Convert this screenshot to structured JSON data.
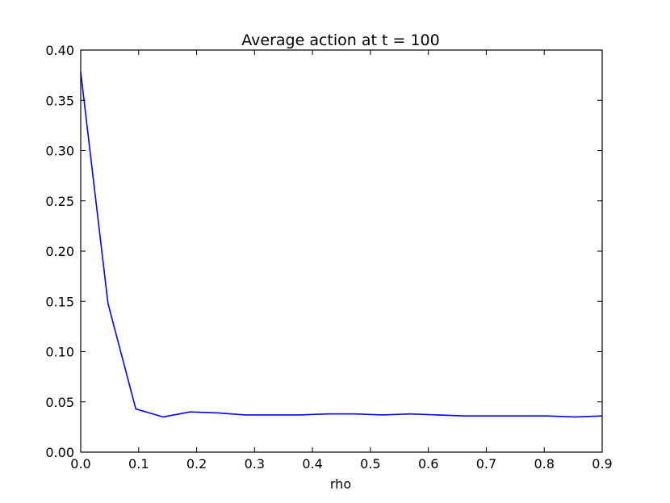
{
  "chart_data": {
    "type": "line",
    "title": "Average action at t = 100",
    "xlabel": "rho",
    "ylabel": "",
    "xlim": [
      0.0,
      0.9
    ],
    "ylim": [
      0.0,
      0.4
    ],
    "xticks": [
      "0.0",
      "0.1",
      "0.2",
      "0.3",
      "0.4",
      "0.5",
      "0.6",
      "0.7",
      "0.8",
      "0.9"
    ],
    "yticks": [
      "0.00",
      "0.05",
      "0.10",
      "0.15",
      "0.20",
      "0.25",
      "0.30",
      "0.35",
      "0.40"
    ],
    "grid": false,
    "series": [
      {
        "color": "#0000ff",
        "x": [
          0.0,
          0.047,
          0.095,
          0.142,
          0.189,
          0.237,
          0.284,
          0.332,
          0.379,
          0.426,
          0.474,
          0.521,
          0.568,
          0.616,
          0.663,
          0.711,
          0.758,
          0.805,
          0.853,
          0.9
        ],
        "y": [
          0.378,
          0.148,
          0.043,
          0.035,
          0.04,
          0.039,
          0.037,
          0.037,
          0.037,
          0.038,
          0.038,
          0.037,
          0.038,
          0.037,
          0.036,
          0.036,
          0.036,
          0.036,
          0.035,
          0.036
        ]
      }
    ]
  }
}
